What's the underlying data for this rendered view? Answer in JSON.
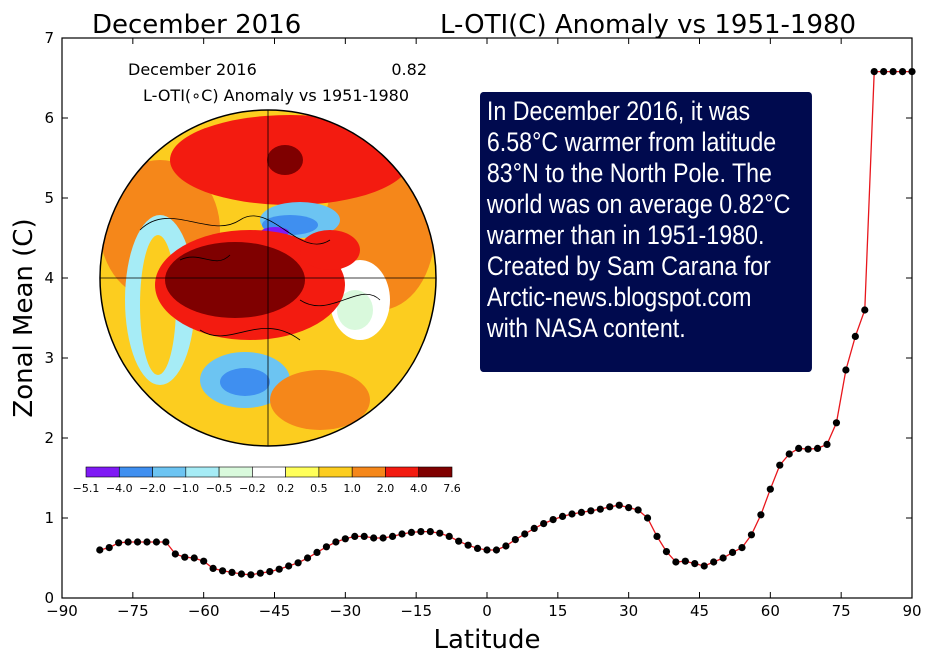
{
  "chart_data": {
    "type": "line",
    "title_left": "December 2016",
    "title_right": "L-OTI(C) Anomaly vs 1951-1980",
    "xlabel": "Latitude",
    "ylabel": "Zonal Mean (C)",
    "xlim": [
      -90,
      90
    ],
    "ylim": [
      0,
      7
    ],
    "xticks": [
      -90,
      -75,
      -60,
      -45,
      -30,
      -15,
      0,
      15,
      30,
      45,
      60,
      75,
      90
    ],
    "yticks": [
      0,
      1,
      2,
      3,
      4,
      5,
      6,
      7
    ],
    "line_color": "#e8161c",
    "marker_color": "#000000",
    "x": [
      -82,
      -80,
      -78,
      -76,
      -74,
      -72,
      -70,
      -68,
      -66,
      -64,
      -62,
      -60,
      -58,
      -56,
      -54,
      -52,
      -50,
      -48,
      -46,
      -44,
      -42,
      -40,
      -38,
      -36,
      -34,
      -32,
      -30,
      -28,
      -26,
      -24,
      -22,
      -20,
      -18,
      -16,
      -14,
      -12,
      -10,
      -8,
      -6,
      -4,
      -2,
      0,
      2,
      4,
      6,
      8,
      10,
      12,
      14,
      16,
      18,
      20,
      22,
      24,
      26,
      28,
      30,
      32,
      34,
      36,
      38,
      40,
      42,
      44,
      46,
      48,
      50,
      52,
      54,
      56,
      58,
      60,
      62,
      64,
      66,
      68,
      70,
      72,
      74,
      76,
      78,
      80,
      82,
      84,
      86,
      88,
      90
    ],
    "values": [
      0.6,
      0.63,
      0.69,
      0.7,
      0.7,
      0.7,
      0.7,
      0.7,
      0.55,
      0.51,
      0.5,
      0.46,
      0.37,
      0.34,
      0.32,
      0.3,
      0.29,
      0.31,
      0.33,
      0.36,
      0.4,
      0.44,
      0.5,
      0.57,
      0.64,
      0.7,
      0.74,
      0.77,
      0.77,
      0.75,
      0.75,
      0.77,
      0.8,
      0.82,
      0.83,
      0.83,
      0.81,
      0.77,
      0.71,
      0.66,
      0.62,
      0.6,
      0.6,
      0.65,
      0.73,
      0.8,
      0.87,
      0.93,
      0.98,
      1.02,
      1.05,
      1.07,
      1.09,
      1.11,
      1.14,
      1.16,
      1.13,
      1.1,
      1.0,
      0.77,
      0.58,
      0.45,
      0.46,
      0.43,
      0.4,
      0.45,
      0.5,
      0.57,
      0.63,
      0.79,
      1.04,
      1.36,
      1.66,
      1.8,
      1.87,
      1.86,
      1.87,
      1.92,
      2.19,
      2.85,
      3.27,
      3.6,
      6.58,
      6.58,
      6.58,
      6.58,
      6.58
    ]
  },
  "inset_map": {
    "title": "December 2016",
    "value": "0.82",
    "subtitle": "L-OTI(∘C) Anomaly vs 1951-1980",
    "colorbar_labels": [
      "−5.1",
      "−4.0",
      "−2.0",
      "−1.0",
      "−0.5",
      "−0.2",
      "0.2",
      "0.5",
      "1.0",
      "2.0",
      "4.0",
      "7.6"
    ],
    "colorbar_colors": [
      "#7f1af5",
      "#3f8ff0",
      "#6cc4f2",
      "#a6ecf6",
      "#d9f9dc",
      "#ffffff",
      "#ffff5a",
      "#fccd1f",
      "#f5871a",
      "#f31b10",
      "#7f0000"
    ]
  },
  "note": {
    "lines": [
      "In December 2016, it was",
      "6.58°C warmer from latitude",
      "83°N to the North Pole.  The",
      "world was on average 0.82°C",
      "warmer than in 1951-1980.",
      "Created by Sam Carana for",
      "Arctic-news.blogspot.com",
      "with NASA content."
    ],
    "background": "#000a4e",
    "text_color": "#ffffff"
  }
}
